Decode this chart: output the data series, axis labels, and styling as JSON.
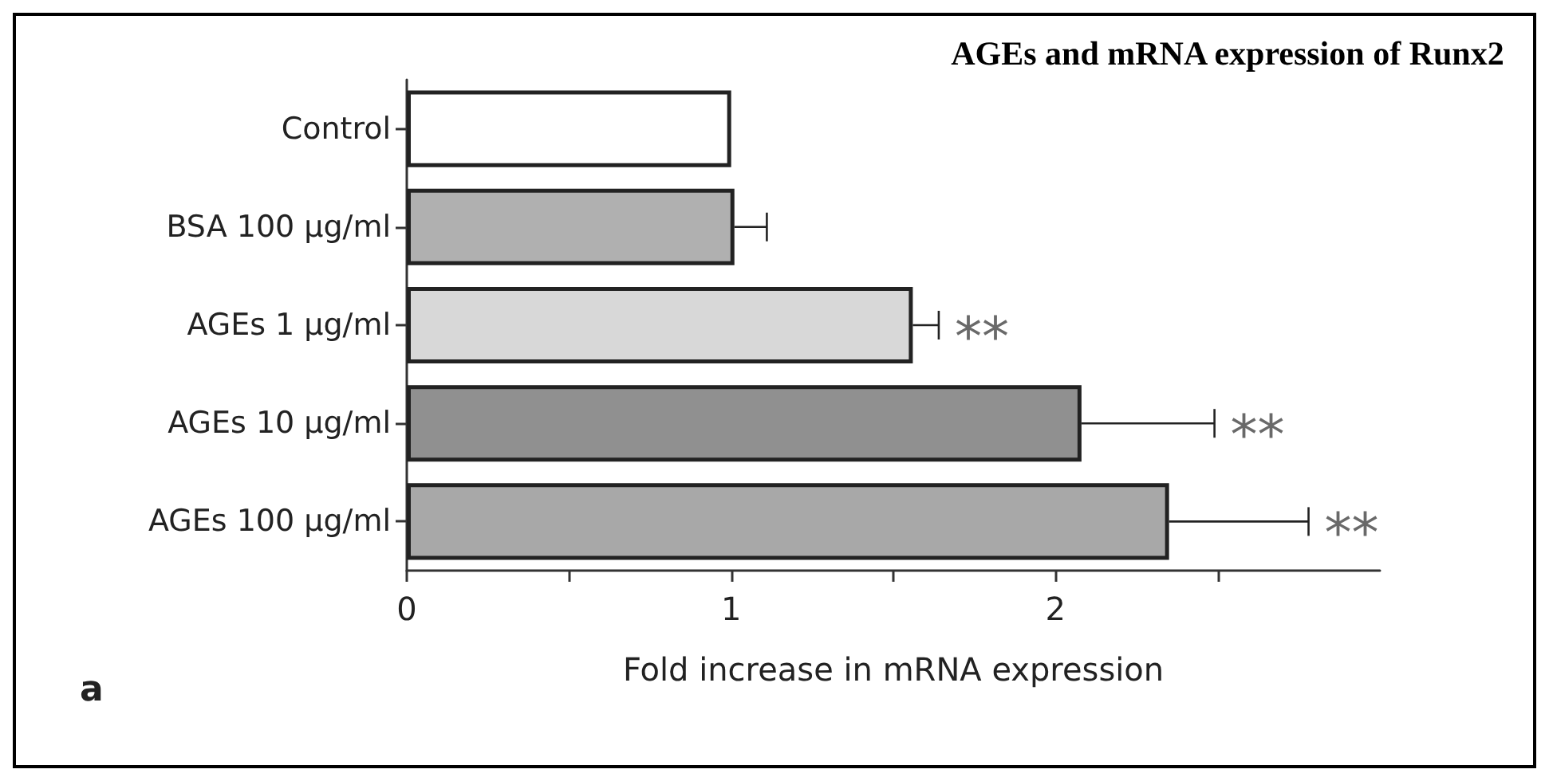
{
  "chart_data": {
    "type": "bar",
    "orientation": "horizontal",
    "title": "AGEs and mRNA expression of Runx2",
    "xlabel": "Fold increase in mRNA expression",
    "categories": [
      "Control",
      "BSA 100 µg/ml",
      "AGEs 1 µg/ml",
      "AGEs 10 µg/ml",
      "AGEs 100 µg/ml"
    ],
    "values": [
      1.0,
      1.01,
      1.56,
      2.08,
      2.35
    ],
    "colors": [
      "#ffffff",
      "#b0b0b0",
      "#d8d8d8",
      "#909090",
      "#a8a8a8"
    ],
    "errors": [
      null,
      [
        1.01,
        1.11
      ],
      [
        1.56,
        1.64
      ],
      [
        2.08,
        2.49
      ],
      [
        2.35,
        2.78
      ]
    ],
    "xlim": [
      0,
      3
    ],
    "xticks": [
      0,
      {
        "value": 0.5,
        "label": null
      },
      1,
      {
        "value": 1.5,
        "label": null
      },
      2,
      {
        "value": 2.5,
        "label": null
      }
    ],
    "grid": false,
    "annotations": [
      {
        "text": "**",
        "x": 1.64,
        "y": "AGEs 1 µg/ml"
      },
      {
        "text": "**",
        "x": 2.49,
        "y": "AGEs 10 µg/ml"
      },
      {
        "text": "**",
        "x": 2.78,
        "y": "AGEs 100 µg/ml"
      },
      "a"
    ]
  }
}
